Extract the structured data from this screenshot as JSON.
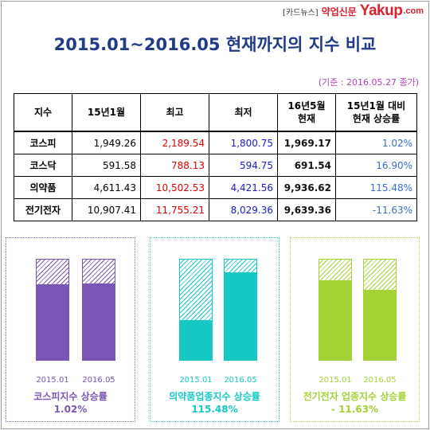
{
  "brand": {
    "tag": "[카드뉴스]",
    "name_kr": "약업신문",
    "logo": "Yakup",
    "domain": ".com"
  },
  "title": "2015.01~2016.05 현재까지의 지수 비교",
  "note": "(기준 : 2016.05.27 종가)",
  "table": {
    "headers": [
      "지수",
      "15년1월",
      "최고",
      "최저",
      "16년5월 현재",
      "15년1월 대비 현재 상승률"
    ],
    "rows": [
      {
        "name": "코스피",
        "jan15": "1,949.26",
        "high": "2,189.54",
        "low": "1,800.75",
        "current": "1,969.17",
        "change": "1.02%"
      },
      {
        "name": "코스닥",
        "jan15": "591.58",
        "high": "788.13",
        "low": "594.75",
        "current": "691.54",
        "change": "16.90%"
      },
      {
        "name": "의약품",
        "jan15": "4,611.43",
        "high": "10,502.53",
        "low": "4,421.56",
        "current": "9,936.62",
        "change": "115.48%"
      },
      {
        "name": "전기전자",
        "jan15": "10,907.41",
        "high": "11,755.21",
        "low": "8,029.36",
        "current": "9,639.36",
        "change": "-11.63%"
      }
    ]
  },
  "chart_data": [
    {
      "type": "bar",
      "categories": [
        "2015.01",
        "2016.05"
      ],
      "values": [
        1949.26,
        1969.17
      ],
      "title": "코스피지수 상승률",
      "subtitle": "1.02%",
      "ylim": [
        0,
        2600
      ],
      "color": "#7b55b5",
      "frame_color": "#8a6cc2"
    },
    {
      "type": "bar",
      "categories": [
        "2015.01",
        "2016.05"
      ],
      "values": [
        4611.43,
        9936.62
      ],
      "title": "의약품업종지수 상승률",
      "subtitle": "115.48%",
      "ylim": [
        0,
        11500
      ],
      "color": "#17c9c4",
      "frame_color": "#2cc8c4"
    },
    {
      "type": "bar",
      "categories": [
        "2015.01",
        "2016.05"
      ],
      "values": [
        10907.41,
        9639.36
      ],
      "title": "전기전자 업종지수 상승률",
      "subtitle": "- 11.63%",
      "ylim": [
        0,
        13800
      ],
      "color": "#a3d336",
      "frame_color": "#a8d44a"
    }
  ]
}
